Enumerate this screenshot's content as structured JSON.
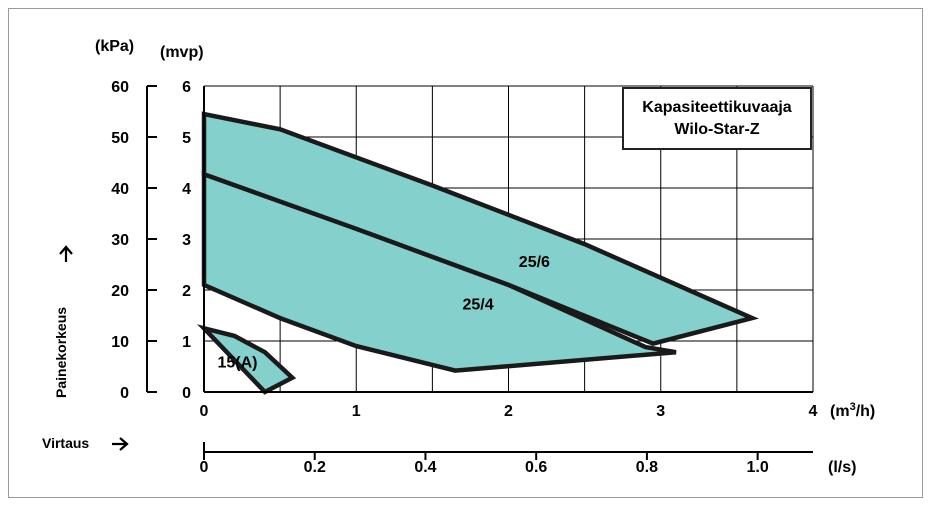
{
  "chart_data": {
    "type": "area",
    "axes": {
      "left_kpa": {
        "unit": "(kPa)",
        "ticks": [
          "0",
          "10",
          "20",
          "30",
          "40",
          "50",
          "60"
        ]
      },
      "left_mvp": {
        "unit": "(mvp)",
        "ticks": [
          "0",
          "1",
          "2",
          "3",
          "4",
          "5",
          "6"
        ],
        "range": [
          0,
          6
        ]
      },
      "x_m3h": {
        "unit": "m3/h",
        "ticks": [
          "0",
          "1",
          "2",
          "3",
          "4"
        ],
        "range": [
          0,
          4
        ]
      },
      "x_ls": {
        "unit": "(l/s)",
        "ticks": [
          "0",
          "0.2",
          "0.4",
          "0.6",
          "0.8",
          "1.0"
        ],
        "range": [
          0,
          1.1
        ]
      },
      "ylabel": "Painekorkeus",
      "flow_label": "Virtaus"
    },
    "legend": {
      "line1": "Kapasiteettikuvaaja",
      "line2": "Wilo-Star-Z"
    },
    "grid": true,
    "fill_color": "#84d0cc",
    "series": [
      {
        "name": "15(A)",
        "label": "15(A)",
        "points": [
          [
            0,
            1.25
          ],
          [
            0.2,
            1.1
          ],
          [
            0.4,
            0.78
          ],
          [
            0.58,
            0.28
          ],
          [
            0.4,
            0.0
          ]
        ]
      },
      {
        "name": "25/4",
        "label": "25/4",
        "points": [
          [
            0,
            4.27
          ],
          [
            1.0,
            3.2
          ],
          [
            2.0,
            2.1
          ],
          [
            2.9,
            0.88
          ],
          [
            3.1,
            0.78
          ],
          [
            1.65,
            0.42
          ],
          [
            1.0,
            0.9
          ],
          [
            0.5,
            1.45
          ],
          [
            0,
            2.1
          ]
        ]
      },
      {
        "name": "25/6",
        "label": "25/6",
        "points": [
          [
            0,
            5.45
          ],
          [
            0.5,
            5.15
          ],
          [
            1.5,
            4.05
          ],
          [
            2.5,
            2.9
          ],
          [
            3.6,
            1.45
          ],
          [
            2.95,
            0.95
          ],
          [
            2.0,
            2.1
          ],
          [
            1.0,
            3.2
          ],
          [
            0,
            4.27
          ]
        ]
      }
    ]
  }
}
